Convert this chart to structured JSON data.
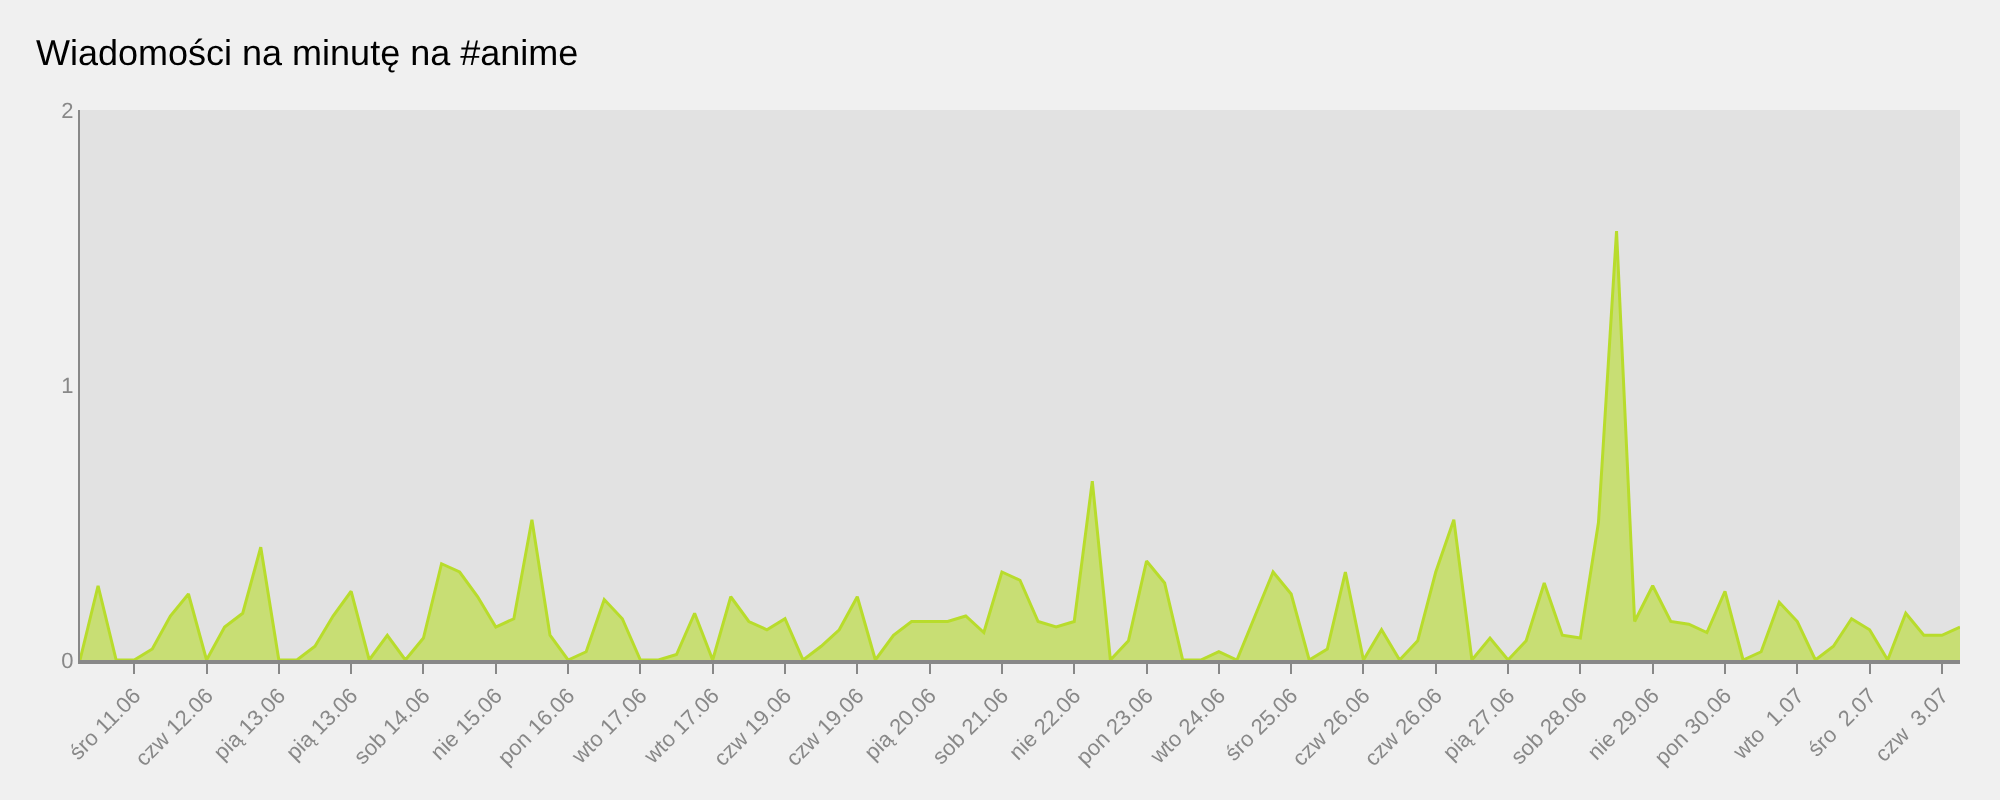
{
  "chart_data": {
    "type": "area",
    "title": "Wiadomości na minutę na #anime",
    "categories": [
      null,
      null,
      null,
      "śro 11.06",
      null,
      null,
      null,
      "czw 12.06",
      null,
      null,
      null,
      "pią 13.06",
      null,
      null,
      null,
      "pią 13.06",
      null,
      null,
      null,
      "sob 14.06",
      null,
      null,
      null,
      "nie 15.06",
      null,
      null,
      null,
      "pon 16.06",
      null,
      null,
      null,
      "wto 17.06",
      null,
      null,
      null,
      "wto 17.06",
      null,
      null,
      null,
      "czw 19.06",
      null,
      null,
      null,
      "czw 19.06",
      null,
      null,
      null,
      "pią 20.06",
      null,
      null,
      null,
      "sob 21.06",
      null,
      null,
      null,
      "nie 22.06",
      null,
      null,
      null,
      "pon 23.06",
      null,
      null,
      null,
      "wto 24.06",
      null,
      null,
      null,
      "śro 25.06",
      null,
      null,
      null,
      "czw 26.06",
      null,
      null,
      null,
      "czw 26.06",
      null,
      null,
      null,
      "pią 27.06",
      null,
      null,
      null,
      "sob 28.06",
      null,
      null,
      null,
      "nie 29.06",
      null,
      null,
      null,
      "pon 30.06",
      null,
      null,
      null,
      "wto  1.07",
      null,
      null,
      null,
      "śro  2.07",
      null,
      null,
      null,
      "czw  3.07",
      null
    ],
    "series": [
      {
        "color": "#b8dc2c",
        "values": [
          0,
          0.27,
          0,
          0,
          0.04,
          0.16,
          0.24,
          0,
          0.12,
          0.17,
          0.41,
          0,
          0,
          0.05,
          0.16,
          0.25,
          0,
          0.09,
          0,
          0.08,
          0.35,
          0.32,
          0.23,
          0.12,
          0.15,
          0.51,
          0.09,
          0,
          0.03,
          0.22,
          0.15,
          0,
          0,
          0.02,
          0.17,
          0,
          0.23,
          0.14,
          0.11,
          0.15,
          0,
          0.05,
          0.11,
          0.23,
          0,
          0.09,
          0.14,
          0.14,
          0.14,
          0.16,
          0.1,
          0.32,
          0.29,
          0.14,
          0.12,
          0.14,
          0.65,
          0,
          0.07,
          0.36,
          0.28,
          0,
          0,
          0.03,
          0,
          0.16,
          0.32,
          0.24,
          0,
          0.04,
          0.32,
          0,
          0.11,
          0,
          0.07,
          0.32,
          0.51,
          0,
          0.08,
          0,
          0.07,
          0.28,
          0.09,
          0.08,
          0.5,
          1.56,
          0.14,
          0.27,
          0.14,
          0.13,
          0.1,
          0.25,
          0,
          0.03,
          0.21,
          0.14,
          0,
          0.05,
          0.15,
          0.11,
          0,
          0.17,
          0.09,
          0.09,
          0.12
        ]
      }
    ],
    "ylim": [
      0,
      2
    ],
    "yticks": [
      0,
      1,
      2
    ],
    "grid": false
  }
}
